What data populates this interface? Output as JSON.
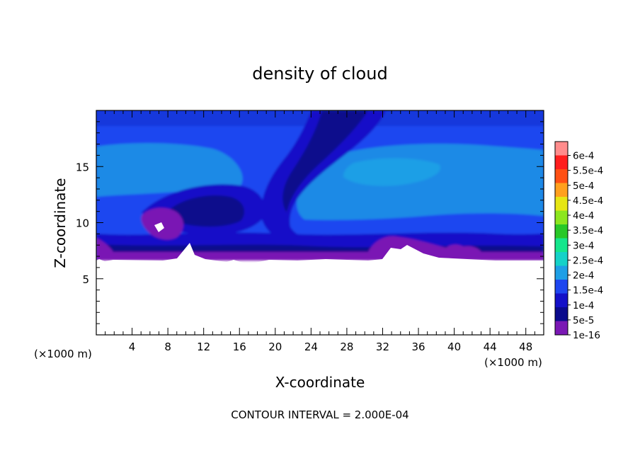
{
  "chart_data": {
    "type": "heatmap",
    "title": "density of cloud",
    "xlabel": "X-coordinate",
    "ylabel": "Z-coordinate",
    "x_unit_left": "(×1000 m)",
    "x_unit_right": "(×1000 m)",
    "footer": "CONTOUR INTERVAL = 2.000E-04",
    "xlim": [
      0,
      50
    ],
    "ylim": [
      0,
      20
    ],
    "x_ticks": [
      4,
      8,
      12,
      16,
      20,
      24,
      28,
      32,
      36,
      40,
      44,
      48
    ],
    "y_ticks": [
      5,
      10,
      15
    ],
    "colorbar": {
      "labels": [
        "1e-16",
        "5e-5",
        "1e-4",
        "1.5e-4",
        "2e-4",
        "2.5e-4",
        "3e-4",
        "3.5e-4",
        "4e-4",
        "4.5e-4",
        "5e-4",
        "5.5e-4",
        "6e-4"
      ],
      "colors": [
        "#7a18b4",
        "#0a0a8c",
        "#1410c8",
        "#1e46f0",
        "#1e9fe6",
        "#14d2c8",
        "#14e68c",
        "#28c828",
        "#8ce61e",
        "#e6e614",
        "#ffa01e",
        "#ff5014",
        "#ff1e1e",
        "#ff8c8c"
      ]
    },
    "regions": {
      "cloud_base_z": 6.8,
      "cloud_top_z": 20,
      "dominant_level": "1e-4 to 1.5e-4",
      "max_level": "1.5e-4 to 2e-4"
    }
  }
}
